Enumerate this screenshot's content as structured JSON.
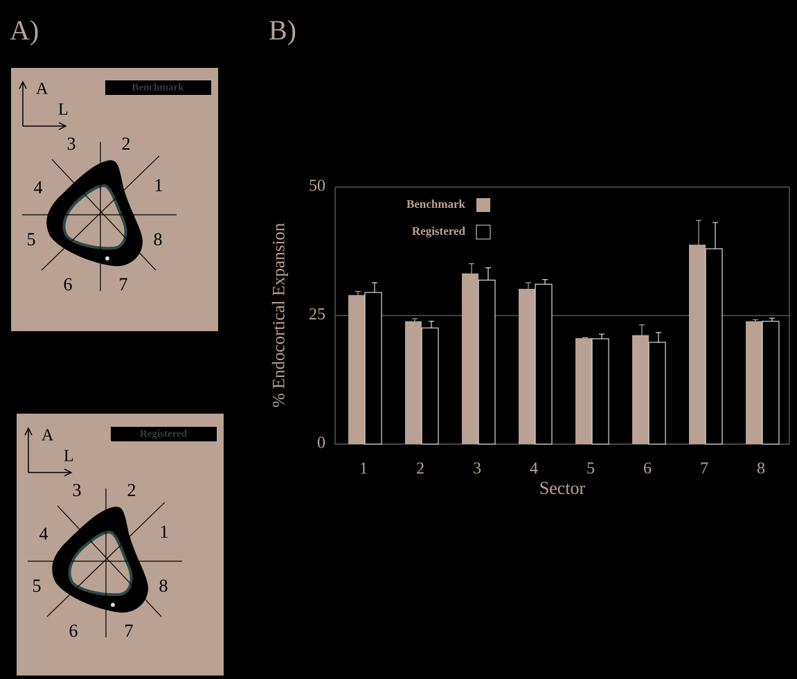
{
  "panels": {
    "a_label": "A)",
    "b_label": "B)",
    "views": [
      {
        "tag": "Benchmark",
        "axes": [
          "A",
          "L"
        ],
        "sectors": [
          "1",
          "2",
          "3",
          "4",
          "5",
          "6",
          "7",
          "8"
        ]
      },
      {
        "tag": "Registered",
        "axes": [
          "A",
          "L"
        ],
        "sectors": [
          "1",
          "2",
          "3",
          "4",
          "5",
          "6",
          "7",
          "8"
        ]
      }
    ]
  },
  "chart_data": {
    "type": "bar",
    "y_label": "% Endocortical Expansion",
    "x_label": "Sector",
    "categories": [
      "1",
      "2",
      "3",
      "4",
      "5",
      "6",
      "7",
      "8"
    ],
    "series": [
      {
        "name": "Benchmark",
        "color": "#b9a293",
        "values": [
          29.0,
          23.9,
          33.2,
          30.2,
          20.6,
          21.2,
          38.8,
          23.9
        ],
        "errors": [
          0.7,
          0.5,
          1.9,
          1.2,
          0.1,
          2.0,
          4.7,
          0.3
        ]
      },
      {
        "name": "Registered",
        "color": "#000000",
        "values": [
          29.5,
          22.6,
          31.9,
          31.1,
          20.5,
          19.8,
          38.0,
          23.9
        ],
        "errors": [
          1.9,
          1.3,
          2.4,
          0.9,
          0.9,
          1.9,
          5.1,
          0.6
        ]
      }
    ],
    "ylim": [
      0,
      50
    ],
    "yticks": [
      0,
      25,
      50
    ],
    "grid": true
  }
}
